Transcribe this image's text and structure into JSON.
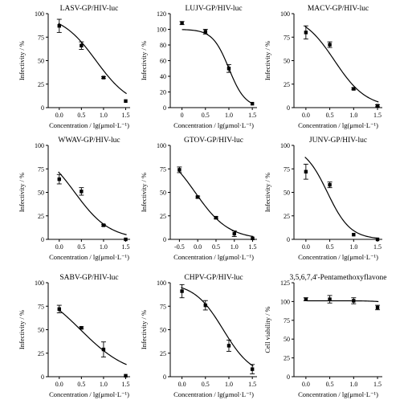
{
  "chart_data": [
    {
      "type": "scatter",
      "title": "LASV-GP/HIV-luc",
      "xlabel": "Concentration / lg(μmol·L⁻¹)",
      "ylabel": "Infectivity / %",
      "xlim": [
        -0.25,
        1.6
      ],
      "ylim": [
        0,
        100
      ],
      "xticks": [
        0,
        0.5,
        1.0,
        1.5
      ],
      "xtick_labels": [
        "0.0",
        "0.5",
        "1.0",
        "1.5"
      ],
      "yticks": [
        0,
        25,
        50,
        75,
        100
      ],
      "ytick_labels": [
        "0",
        "25",
        "50",
        "75",
        "100"
      ],
      "points": [
        {
          "x": 0.0,
          "y": 87,
          "err": 7
        },
        {
          "x": 0.5,
          "y": 66,
          "err": 4
        },
        {
          "x": 1.0,
          "y": 32,
          "err": 1
        },
        {
          "x": 1.5,
          "y": 7,
          "err": 0
        }
      ],
      "fit": {
        "top": 100,
        "bottom": 0,
        "logIC50": 0.83,
        "hill": -1.1,
        "x_start": -0.02,
        "x_end": 1.52
      }
    },
    {
      "type": "scatter",
      "title": "LUJV-GP/HIV-luc",
      "xlabel": "Concentration / lg(μmol·L⁻¹)",
      "ylabel": "Infectivity / %",
      "xlim": [
        -0.25,
        1.6
      ],
      "ylim": [
        0,
        120
      ],
      "xticks": [
        0,
        0.5,
        1.0,
        1.5
      ],
      "xtick_labels": [
        "0",
        "0.5",
        "1.0",
        "1.5"
      ],
      "yticks": [
        0,
        20,
        40,
        60,
        80,
        100,
        120
      ],
      "ytick_labels": [
        "0",
        "20",
        "40",
        "60",
        "80",
        "100",
        "120"
      ],
      "points": [
        {
          "x": 0.0,
          "y": 108,
          "err": 2
        },
        {
          "x": 0.5,
          "y": 97,
          "err": 3
        },
        {
          "x": 1.0,
          "y": 50,
          "err": 5
        },
        {
          "x": 1.5,
          "y": 5,
          "err": 0
        }
      ],
      "fit": {
        "top": 100,
        "bottom": 0,
        "logIC50": 1.0,
        "hill": -2.5,
        "x_start": 0.0,
        "x_end": 1.52
      }
    },
    {
      "type": "scatter",
      "title": "MACV-GP/HIV-luc",
      "xlabel": "Concentration / lg(μmol·L⁻¹)",
      "ylabel": "Infectivity / %",
      "xlim": [
        -0.25,
        1.6
      ],
      "ylim": [
        0,
        100
      ],
      "xticks": [
        0,
        0.5,
        1.0,
        1.5
      ],
      "xtick_labels": [
        "0.0",
        "0.5",
        "1.0",
        "1.5"
      ],
      "yticks": [
        0,
        25,
        50,
        75,
        100
      ],
      "ytick_labels": [
        "0",
        "25",
        "50",
        "75",
        "100"
      ],
      "points": [
        {
          "x": 0.0,
          "y": 80,
          "err": 7
        },
        {
          "x": 0.5,
          "y": 67,
          "err": 3
        },
        {
          "x": 1.0,
          "y": 20,
          "err": 1
        },
        {
          "x": 1.5,
          "y": 2,
          "err": 1
        }
      ],
      "fit": {
        "top": 100,
        "bottom": 0,
        "logIC50": 0.6,
        "hill": -1.3,
        "x_start": -0.02,
        "x_end": 1.52
      }
    },
    {
      "type": "scatter",
      "title": "WWAV-GP/HIV-luc",
      "xlabel": "Concentration / lg(μmol·L⁻¹)",
      "ylabel": "Infectivity / %",
      "xlim": [
        -0.25,
        1.6
      ],
      "ylim": [
        0,
        100
      ],
      "xticks": [
        0,
        0.5,
        1.0,
        1.5
      ],
      "xtick_labels": [
        "0.0",
        "0.5",
        "1.0",
        "1.5"
      ],
      "yticks": [
        0,
        25,
        50,
        75,
        100
      ],
      "ytick_labels": [
        "0",
        "25",
        "50",
        "75",
        "100"
      ],
      "points": [
        {
          "x": 0.0,
          "y": 64,
          "err": 5
        },
        {
          "x": 0.5,
          "y": 51,
          "err": 4
        },
        {
          "x": 1.0,
          "y": 15,
          "err": 1
        },
        {
          "x": 1.5,
          "y": 0,
          "err": 0
        }
      ],
      "fit": {
        "top": 100,
        "bottom": 0,
        "logIC50": 0.35,
        "hill": -1.1,
        "x_start": -0.02,
        "x_end": 1.52
      }
    },
    {
      "type": "scatter",
      "title": "GTOV-GP/HIV-luc",
      "xlabel": "Concentration / lg(μmol·L⁻¹)",
      "ylabel": "Infectivity / %",
      "xlim": [
        -0.75,
        1.62
      ],
      "ylim": [
        0,
        100
      ],
      "xticks": [
        -0.5,
        0,
        0.5,
        1.0,
        1.5
      ],
      "xtick_labels": [
        "-0.5",
        "0.0",
        "0.5",
        "1.0",
        "1.5"
      ],
      "yticks": [
        0,
        25,
        50,
        75,
        100
      ],
      "ytick_labels": [
        "0",
        "25",
        "50",
        "75",
        "100"
      ],
      "points": [
        {
          "x": -0.5,
          "y": 74,
          "err": 3
        },
        {
          "x": 0.0,
          "y": 45,
          "err": 1
        },
        {
          "x": 0.5,
          "y": 23,
          "err": 1
        },
        {
          "x": 1.0,
          "y": 6,
          "err": 3
        },
        {
          "x": 1.5,
          "y": 1,
          "err": 0
        }
      ],
      "fit": {
        "top": 100,
        "bottom": 0,
        "logIC50": -0.07,
        "hill": -0.95,
        "x_start": -0.52,
        "x_end": 1.52
      }
    },
    {
      "type": "scatter",
      "title": "JUNV-GP/HIV-luc",
      "xlabel": "Concentration / lg(μmol·L⁻¹)",
      "ylabel": "Infectivity / %",
      "xlim": [
        -0.25,
        1.6
      ],
      "ylim": [
        0,
        100
      ],
      "xticks": [
        0,
        0.5,
        1.0,
        1.5
      ],
      "xtick_labels": [
        "0.0",
        "0.5",
        "1.0",
        "1.5"
      ],
      "yticks": [
        0,
        25,
        50,
        75,
        100
      ],
      "ytick_labels": [
        "0",
        "25",
        "50",
        "75",
        "100"
      ],
      "points": [
        {
          "x": 0.0,
          "y": 72,
          "err": 8
        },
        {
          "x": 0.5,
          "y": 58,
          "err": 3
        },
        {
          "x": 1.0,
          "y": 5,
          "err": 0
        },
        {
          "x": 1.5,
          "y": 0,
          "err": 0
        }
      ],
      "fit": {
        "top": 100,
        "bottom": 0,
        "logIC50": 0.45,
        "hill": -1.8,
        "x_start": -0.02,
        "x_end": 1.52
      }
    },
    {
      "type": "scatter",
      "title": "SABV-GP/HIV-luc",
      "xlabel": "Concentration / lg(μmol·L⁻¹)",
      "ylabel": "Infectivity / %",
      "xlim": [
        -0.25,
        1.6
      ],
      "ylim": [
        0,
        100
      ],
      "xticks": [
        0,
        0.5,
        1.0,
        1.5
      ],
      "xtick_labels": [
        "0.0",
        "0.5",
        "1.0",
        "1.5"
      ],
      "yticks": [
        0,
        25,
        50,
        75,
        100
      ],
      "ytick_labels": [
        "0",
        "25",
        "50",
        "75",
        "100"
      ],
      "points": [
        {
          "x": 0.0,
          "y": 72,
          "err": 4
        },
        {
          "x": 0.5,
          "y": 52,
          "err": 1
        },
        {
          "x": 1.0,
          "y": 29,
          "err": 8
        },
        {
          "x": 1.5,
          "y": 1,
          "err": 0
        }
      ],
      "fit": {
        "top": 100,
        "bottom": 0,
        "logIC50": 0.48,
        "hill": -0.8,
        "x_start": -0.02,
        "x_end": 1.52
      }
    },
    {
      "type": "scatter",
      "title": "CHPV-GP/HIV-luc",
      "xlabel": "Concentration / lg(μmol·L⁻¹)",
      "ylabel": "Infectivity / %",
      "xlim": [
        -0.25,
        1.6
      ],
      "ylim": [
        0,
        100
      ],
      "xticks": [
        0,
        0.5,
        1.0,
        1.5
      ],
      "xtick_labels": [
        "0.0",
        "0.5",
        "1.0",
        "1.5"
      ],
      "yticks": [
        0,
        25,
        50,
        75,
        100
      ],
      "ytick_labels": [
        "0",
        "25",
        "50",
        "75",
        "100"
      ],
      "points": [
        {
          "x": 0.0,
          "y": 91,
          "err": 7
        },
        {
          "x": 0.5,
          "y": 76,
          "err": 5
        },
        {
          "x": 1.0,
          "y": 33,
          "err": 6
        },
        {
          "x": 1.5,
          "y": 8,
          "err": 5
        }
      ],
      "fit": {
        "top": 100,
        "bottom": 0,
        "logIC50": 0.88,
        "hill": -1.4,
        "x_start": -0.02,
        "x_end": 1.52
      }
    },
    {
      "type": "scatter",
      "title": "3,5,6,7,4'-Pentamethoxyflavone",
      "xlabel": "Concentration / lg(μmol·L⁻¹)",
      "ylabel": "Cell viability / %",
      "xlim": [
        -0.25,
        1.6
      ],
      "ylim": [
        0,
        125
      ],
      "xticks": [
        0,
        0.5,
        1.0,
        1.5
      ],
      "xtick_labels": [
        "0.0",
        "0.5",
        "1.0",
        "1.5"
      ],
      "yticks": [
        0,
        25,
        50,
        75,
        100,
        125
      ],
      "ytick_labels": [
        "0",
        "25",
        "50",
        "75",
        "100",
        "125"
      ],
      "points": [
        {
          "x": 0.0,
          "y": 103,
          "err": 2
        },
        {
          "x": 0.5,
          "y": 103,
          "err": 5
        },
        {
          "x": 1.0,
          "y": 101,
          "err": 4
        },
        {
          "x": 1.5,
          "y": 92,
          "err": 3
        }
      ],
      "fit": {
        "top": 101,
        "bottom": 0,
        "logIC50": 2.5,
        "hill": -2.0,
        "x_start": -0.02,
        "x_end": 1.52
      }
    }
  ]
}
